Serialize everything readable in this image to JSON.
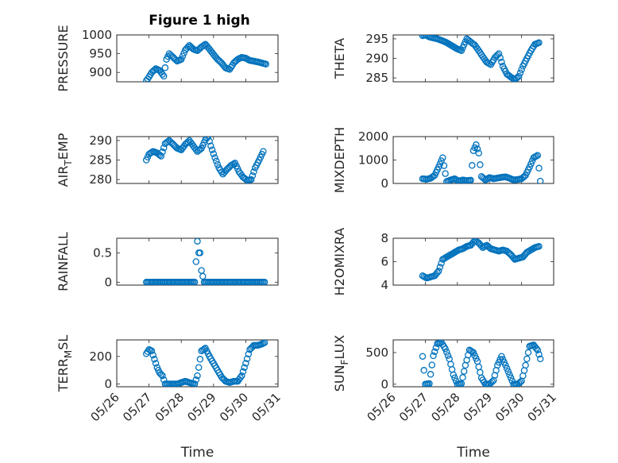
{
  "figure": {
    "title": "Figure 1 high"
  },
  "chart_data": [
    {
      "type": "scatter",
      "title": "Figure 1 high",
      "ylabel": "PRESSURE",
      "xlabel": "",
      "xlim": [
        "05/26",
        "05/31"
      ],
      "ylim": [
        875,
        1000
      ],
      "yticks": [
        900,
        950,
        1000
      ],
      "grid": true,
      "x": [
        "05/26 22:00",
        "05/27 00:00",
        "05/27 02:00",
        "05/27 05:00",
        "05/27 08:00",
        "05/27 11:00",
        "05/27 13:00",
        "05/27 15:00",
        "05/27 18:00",
        "05/27 21:00",
        "05/28 00:00",
        "05/28 03:00",
        "05/28 06:00",
        "05/28 09:00",
        "05/28 12:00",
        "05/28 15:00",
        "05/28 18:00",
        "05/28 21:00",
        "05/29 00:00",
        "05/29 03:00",
        "05/29 06:00",
        "05/29 09:00",
        "05/29 12:00",
        "05/29 15:00",
        "05/29 18:00",
        "05/29 21:00",
        "05/30 00:00",
        "05/30 03:00",
        "05/30 06:00",
        "05/30 09:00",
        "05/30 12:00",
        "05/30 15:00"
      ],
      "values": [
        878,
        888,
        900,
        910,
        905,
        890,
        935,
        950,
        940,
        930,
        935,
        960,
        972,
        962,
        958,
        968,
        975,
        962,
        948,
        935,
        925,
        912,
        908,
        925,
        935,
        940,
        938,
        932,
        930,
        928,
        925,
        922
      ]
    },
    {
      "type": "scatter",
      "ylabel": "THETA",
      "xlabel": "",
      "xlim": [
        "05/26",
        "05/31"
      ],
      "ylim": [
        284,
        296
      ],
      "yticks": [
        285,
        290,
        295
      ],
      "grid": true,
      "x": [
        "05/26 22:00",
        "05/27 00:00",
        "05/27 03:00",
        "05/27 06:00",
        "05/27 09:00",
        "05/27 12:00",
        "05/27 15:00",
        "05/27 18:00",
        "05/27 21:00",
        "05/28 00:00",
        "05/28 03:00",
        "05/28 05:00",
        "05/28 07:00",
        "05/28 10:00",
        "05/28 13:00",
        "05/28 16:00",
        "05/28 19:00",
        "05/28 22:00",
        "05/29 01:00",
        "05/29 04:00",
        "05/29 07:00",
        "05/29 10:00",
        "05/29 13:00",
        "05/29 16:00",
        "05/29 19:00",
        "05/29 22:00",
        "05/30 01:00",
        "05/30 04:00",
        "05/30 07:00",
        "05/30 10:00",
        "05/30 13:00"
      ],
      "values": [
        295.8,
        296,
        295.5,
        295.2,
        295,
        294.6,
        294.2,
        293.6,
        293,
        292.4,
        292,
        293.5,
        295,
        294.2,
        293.4,
        292,
        290.4,
        289,
        288.4,
        290.2,
        291.2,
        288,
        286,
        285.2,
        284.6,
        285.4,
        288,
        290,
        292,
        293.6,
        294
      ]
    },
    {
      "type": "scatter",
      "ylabel": "AIR_TEMP",
      "xlabel": "",
      "xlim": [
        "05/26",
        "05/31"
      ],
      "ylim": [
        279,
        291
      ],
      "yticks": [
        280,
        285,
        290
      ],
      "grid": true,
      "x": [
        "05/26 22:00",
        "05/27 00:00",
        "05/27 03:00",
        "05/27 06:00",
        "05/27 09:00",
        "05/27 12:00",
        "05/27 15:00",
        "05/27 18:00",
        "05/27 21:00",
        "05/28 00:00",
        "05/28 03:00",
        "05/28 06:00",
        "05/28 09:00",
        "05/28 12:00",
        "05/28 15:00",
        "05/28 18:00",
        "05/28 20:00",
        "05/28 22:00",
        "05/29 01:00",
        "05/29 04:00",
        "05/29 07:00",
        "05/29 10:00",
        "05/29 13:00",
        "05/29 16:00",
        "05/29 19:00",
        "05/29 22:00",
        "05/30 01:00",
        "05/30 04:00",
        "05/30 07:00",
        "05/30 10:00",
        "05/30 13:00"
      ],
      "values": [
        285,
        286.5,
        287.2,
        286.8,
        286,
        289.2,
        290,
        289,
        288,
        287.6,
        289,
        290,
        288.6,
        287.2,
        288,
        290.2,
        291,
        288.6,
        285.6,
        283,
        281.4,
        282.6,
        283.6,
        284.2,
        282,
        280.6,
        279.8,
        280,
        283,
        285,
        287.2
      ]
    },
    {
      "type": "scatter",
      "ylabel": "MIXDEPTH",
      "xlabel": "",
      "xlim": [
        "05/26",
        "05/31"
      ],
      "ylim": [
        0,
        2000
      ],
      "yticks": [
        0,
        1000,
        2000
      ],
      "grid": true,
      "x": [
        "05/26 22:00",
        "05/27 01:00",
        "05/27 04:00",
        "05/27 07:00",
        "05/27 10:00",
        "05/27 13:00",
        "05/27 16:00",
        "05/27 19:00",
        "05/27 22:00",
        "05/28 01:00",
        "05/28 04:00",
        "05/28 07:00",
        "05/28 10:00",
        "05/28 12:00",
        "05/28 14:00",
        "05/28 16:00",
        "05/28 18:00",
        "05/28 21:00",
        "05/29 00:00",
        "05/29 03:00",
        "05/29 06:00",
        "05/29 09:00",
        "05/29 12:00",
        "05/29 15:00",
        "05/29 18:00",
        "05/29 21:00",
        "05/30 00:00",
        "05/30 03:00",
        "05/30 06:00",
        "05/30 09:00",
        "05/30 12:00",
        "05/30 14:00"
      ],
      "values": [
        200,
        180,
        220,
        350,
        700,
        1100,
        80,
        150,
        200,
        100,
        150,
        120,
        140,
        1400,
        1650,
        1300,
        300,
        150,
        250,
        200,
        230,
        260,
        280,
        220,
        150,
        170,
        200,
        350,
        700,
        1100,
        1200,
        100
      ]
    },
    {
      "type": "scatter",
      "ylabel": "RAINFALL",
      "xlabel": "",
      "xlim": [
        "05/26",
        "05/31"
      ],
      "ylim": [
        -0.05,
        0.75
      ],
      "yticks": [
        0,
        0.5
      ],
      "grid": true,
      "x": [
        "05/26 22:00",
        "05/27 03:00",
        "05/27 08:00",
        "05/27 13:00",
        "05/27 18:00",
        "05/27 23:00",
        "05/28 04:00",
        "05/28 08:00",
        "05/28 10:00",
        "05/28 12:00",
        "05/28 13:00",
        "05/28 14:00",
        "05/28 15:00",
        "05/28 16:00",
        "05/28 17:00",
        "05/28 22:00",
        "05/29 03:00",
        "05/29 08:00",
        "05/29 13:00",
        "05/29 18:00",
        "05/29 23:00",
        "05/30 04:00",
        "05/30 09:00",
        "05/30 14:00"
      ],
      "values": [
        0,
        0,
        0,
        0,
        0,
        0,
        0,
        0,
        0,
        0.7,
        0.5,
        0.5,
        0.2,
        0.1,
        0,
        0,
        0,
        0,
        0,
        0,
        0,
        0,
        0,
        0
      ]
    },
    {
      "type": "scatter",
      "ylabel": "H2OMIXRA",
      "xlabel": "",
      "xlim": [
        "05/26",
        "05/31"
      ],
      "ylim": [
        4,
        8
      ],
      "yticks": [
        4,
        6,
        8
      ],
      "grid": true,
      "x": [
        "05/26 22:00",
        "05/27 01:00",
        "05/27 04:00",
        "05/27 07:00",
        "05/27 10:00",
        "05/27 13:00",
        "05/27 16:00",
        "05/27 19:00",
        "05/27 22:00",
        "05/28 01:00",
        "05/28 04:00",
        "05/28 07:00",
        "05/28 10:00",
        "05/28 13:00",
        "05/28 16:00",
        "05/28 19:00",
        "05/28 22:00",
        "05/29 01:00",
        "05/29 04:00",
        "05/29 07:00",
        "05/29 10:00",
        "05/29 13:00",
        "05/29 16:00",
        "05/29 19:00",
        "05/29 22:00",
        "05/30 01:00",
        "05/30 04:00",
        "05/30 07:00",
        "05/30 10:00",
        "05/30 13:00"
      ],
      "values": [
        4.8,
        4.6,
        4.7,
        4.8,
        5.2,
        6.2,
        6.4,
        6.6,
        6.8,
        7,
        7.1,
        7.3,
        7.4,
        7.8,
        7.6,
        7.2,
        7.4,
        7.1,
        7,
        6.9,
        7,
        6.9,
        6.6,
        6.2,
        6.3,
        6.4,
        6.8,
        7,
        7.2,
        7.3
      ]
    },
    {
      "type": "scatter",
      "ylabel": "TERR_MSL",
      "xlabel": "Time",
      "xlim": [
        "05/26",
        "05/31"
      ],
      "ylim": [
        -20,
        320
      ],
      "yticks": [
        0,
        200
      ],
      "grid": true,
      "xticks": [
        "05/26",
        "05/27",
        "05/28",
        "05/29",
        "05/30",
        "05/31"
      ],
      "x": [
        "05/26 22:00",
        "05/27 00:00",
        "05/27 02:00",
        "05/27 04:00",
        "05/27 06:00",
        "05/27 08:00",
        "05/27 10:00",
        "05/27 12:00",
        "05/27 15:00",
        "05/27 18:00",
        "05/27 21:00",
        "05/28 00:00",
        "05/28 03:00",
        "05/28 06:00",
        "05/28 08:00",
        "05/28 10:00",
        "05/28 12:00",
        "05/28 15:00",
        "05/28 18:00",
        "05/28 21:00",
        "05/29 00:00",
        "05/29 03:00",
        "05/29 06:00",
        "05/29 09:00",
        "05/29 12:00",
        "05/29 15:00",
        "05/29 18:00",
        "05/29 21:00",
        "05/30 00:00",
        "05/30 03:00",
        "05/30 06:00",
        "05/30 09:00",
        "05/30 12:00",
        "05/30 14:00"
      ],
      "values": [
        220,
        250,
        240,
        180,
        120,
        80,
        60,
        0,
        0,
        0,
        0,
        10,
        20,
        10,
        5,
        0,
        60,
        240,
        260,
        200,
        150,
        100,
        50,
        20,
        10,
        20,
        20,
        60,
        150,
        250,
        280,
        280,
        290,
        300
      ]
    },
    {
      "type": "scatter",
      "ylabel": "SUN_FLUX",
      "xlabel": "Time",
      "xlim": [
        "05/26",
        "05/31"
      ],
      "ylim": [
        -40,
        700
      ],
      "yticks": [
        0,
        500
      ],
      "grid": true,
      "xticks": [
        "05/26",
        "05/27",
        "05/28",
        "05/29",
        "05/30",
        "05/31"
      ],
      "x": [
        "05/26 22:00",
        "05/27 00:00",
        "05/27 03:00",
        "05/27 06:00",
        "05/27 09:00",
        "05/27 12:00",
        "05/27 15:00",
        "05/27 18:00",
        "05/27 21:00",
        "05/28 00:00",
        "05/28 03:00",
        "05/28 06:00",
        "05/28 09:00",
        "05/28 12:00",
        "05/28 15:00",
        "05/28 18:00",
        "05/28 21:00",
        "05/29 00:00",
        "05/29 03:00",
        "05/29 06:00",
        "05/29 09:00",
        "05/29 12:00",
        "05/29 15:00",
        "05/29 18:00",
        "05/29 21:00",
        "05/30 00:00",
        "05/30 03:00",
        "05/30 06:00",
        "05/30 09:00",
        "05/30 12:00",
        "05/30 14:00"
      ],
      "values": [
        440,
        0,
        10,
        450,
        640,
        660,
        560,
        400,
        150,
        0,
        10,
        300,
        540,
        500,
        360,
        100,
        0,
        0,
        60,
        300,
        440,
        300,
        150,
        0,
        0,
        50,
        300,
        600,
        620,
        540,
        400
      ]
    }
  ]
}
